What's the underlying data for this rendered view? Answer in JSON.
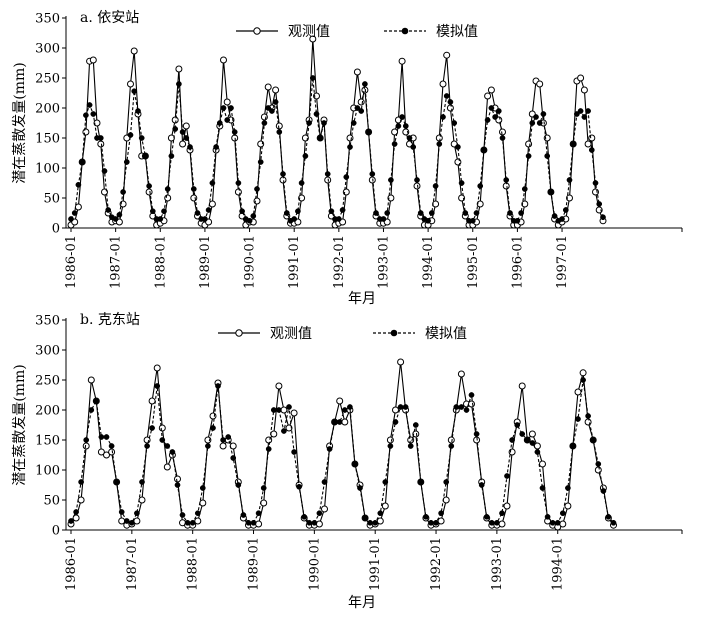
{
  "chart_data": [
    {
      "type": "line",
      "title": "a. 依安站",
      "xlabel": "年月",
      "ylabel": "潜在蒸散发量(mm)",
      "ylim": [
        0,
        350
      ],
      "yticks": [
        0,
        50,
        100,
        150,
        200,
        250,
        300,
        350
      ],
      "xtick_labels": [
        "1986-01",
        "1987-01",
        "1988-01",
        "1989-01",
        "1990-01",
        "1991-01",
        "1992-01",
        "1993-01",
        "1994-01",
        "1995-01",
        "1996-01",
        "1997-01"
      ],
      "x_start": "1986-01",
      "x_end": "1997-12",
      "legend_position": "top-center",
      "series": [
        {
          "name": "观测值",
          "style": "solid-open-circle",
          "values": [
            5,
            10,
            35,
            110,
            160,
            278,
            280,
            175,
            140,
            60,
            25,
            10,
            12,
            10,
            40,
            150,
            240,
            295,
            190,
            120,
            120,
            60,
            20,
            5,
            8,
            12,
            50,
            150,
            180,
            265,
            140,
            170,
            130,
            50,
            20,
            8,
            5,
            10,
            40,
            130,
            170,
            280,
            210,
            180,
            150,
            60,
            20,
            5,
            10,
            10,
            45,
            140,
            185,
            235,
            200,
            230,
            170,
            80,
            20,
            8,
            8,
            10,
            50,
            150,
            180,
            315,
            220,
            150,
            180,
            80,
            20,
            5,
            8,
            10,
            60,
            150,
            200,
            260,
            210,
            230,
            160,
            80,
            20,
            8,
            8,
            10,
            50,
            160,
            180,
            278,
            160,
            140,
            150,
            70,
            20,
            5,
            5,
            12,
            40,
            150,
            240,
            288,
            200,
            140,
            110,
            50,
            20,
            5,
            5,
            10,
            40,
            130,
            220,
            230,
            200,
            180,
            160,
            70,
            20,
            5,
            5,
            10,
            40,
            140,
            190,
            245,
            240,
            175,
            150,
            60,
            15,
            5,
            10,
            15,
            50,
            140,
            245,
            250,
            230,
            140,
            150,
            60,
            30,
            12
          ]
        },
        {
          "name": "模拟值",
          "style": "dashed-filled-circle",
          "values": [
            15,
            25,
            72,
            110,
            188,
            205,
            190,
            150,
            150,
            95,
            30,
            18,
            15,
            22,
            60,
            110,
            155,
            228,
            195,
            150,
            120,
            70,
            28,
            15,
            15,
            28,
            65,
            120,
            165,
            240,
            160,
            150,
            135,
            65,
            25,
            15,
            15,
            30,
            75,
            135,
            175,
            200,
            180,
            200,
            160,
            75,
            28,
            15,
            12,
            20,
            65,
            110,
            175,
            200,
            195,
            210,
            160,
            90,
            25,
            12,
            15,
            28,
            75,
            120,
            175,
            250,
            190,
            150,
            175,
            90,
            28,
            15,
            15,
            30,
            85,
            135,
            175,
            200,
            195,
            240,
            160,
            90,
            25,
            15,
            15,
            25,
            80,
            140,
            170,
            185,
            170,
            150,
            135,
            80,
            25,
            15,
            12,
            25,
            70,
            140,
            185,
            220,
            210,
            175,
            135,
            75,
            25,
            12,
            12,
            25,
            70,
            130,
            180,
            200,
            185,
            195,
            150,
            80,
            25,
            12,
            12,
            25,
            65,
            120,
            175,
            185,
            175,
            190,
            120,
            60,
            20,
            12,
            15,
            30,
            80,
            140,
            190,
            195,
            185,
            195,
            130,
            75,
            40,
            18
          ]
        }
      ]
    },
    {
      "type": "line",
      "title": "b. 克东站",
      "xlabel": "年月",
      "ylabel": "潜在蒸散发量(mm)",
      "ylim": [
        0,
        350
      ],
      "yticks": [
        0,
        50,
        100,
        150,
        200,
        250,
        300,
        350
      ],
      "xtick_labels": [
        "1986-01",
        "1987-01",
        "1988-01",
        "1989-01",
        "1990-01",
        "1991-01",
        "1992-01",
        "1993-01",
        "1994-01"
      ],
      "x_start": "1986-01",
      "x_end": "1994-12",
      "legend_position": "top-center",
      "series": [
        {
          "name": "观测值",
          "style": "solid-open-circle",
          "values": [
            10,
            20,
            50,
            140,
            250,
            215,
            130,
            125,
            130,
            80,
            15,
            8,
            10,
            15,
            50,
            150,
            215,
            270,
            170,
            105,
            125,
            85,
            12,
            8,
            8,
            15,
            45,
            150,
            190,
            245,
            140,
            150,
            140,
            80,
            20,
            8,
            8,
            10,
            45,
            150,
            160,
            240,
            200,
            170,
            195,
            75,
            20,
            8,
            8,
            10,
            35,
            140,
            180,
            215,
            180,
            200,
            110,
            75,
            20,
            8,
            10,
            15,
            40,
            150,
            200,
            280,
            200,
            150,
            160,
            80,
            20,
            8,
            10,
            15,
            50,
            150,
            200,
            260,
            210,
            210,
            150,
            80,
            20,
            8,
            8,
            10,
            40,
            130,
            180,
            240,
            150,
            160,
            140,
            110,
            15,
            8,
            5,
            10,
            40,
            140,
            230,
            262,
            180,
            150,
            100,
            70,
            20,
            8
          ]
        },
        {
          "name": "模拟值",
          "style": "dashed-filled-circle",
          "values": [
            15,
            30,
            80,
            150,
            200,
            215,
            155,
            155,
            140,
            80,
            30,
            15,
            12,
            28,
            80,
            140,
            170,
            240,
            150,
            140,
            130,
            75,
            25,
            12,
            12,
            28,
            70,
            140,
            170,
            240,
            150,
            155,
            120,
            75,
            25,
            12,
            12,
            28,
            70,
            135,
            200,
            200,
            165,
            205,
            130,
            72,
            22,
            12,
            12,
            28,
            80,
            135,
            180,
            180,
            200,
            205,
            110,
            70,
            20,
            12,
            12,
            28,
            80,
            140,
            180,
            205,
            205,
            140,
            175,
            80,
            22,
            12,
            12,
            28,
            80,
            140,
            205,
            205,
            200,
            225,
            160,
            75,
            22,
            12,
            12,
            28,
            90,
            150,
            175,
            160,
            150,
            145,
            130,
            70,
            22,
            12,
            12,
            28,
            70,
            140,
            185,
            250,
            190,
            150,
            110,
            65,
            22,
            12
          ]
        }
      ]
    }
  ]
}
